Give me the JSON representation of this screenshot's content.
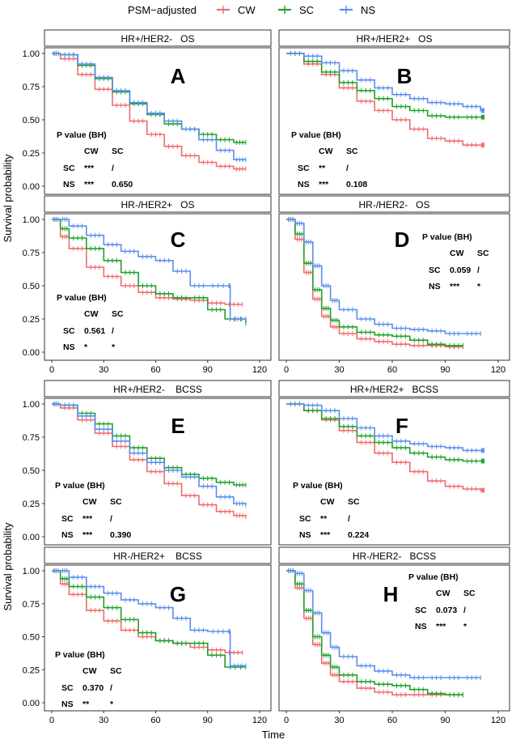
{
  "legend": {
    "title": "PSM−adjusted",
    "entries": [
      {
        "name": "CW",
        "color": "#F26B6B"
      },
      {
        "name": "SC",
        "color": "#1FA12A"
      },
      {
        "name": "NS",
        "color": "#5B8DEF"
      }
    ]
  },
  "axes": {
    "ylabel": "Survival probability",
    "xlabel": "Time",
    "xticks": [
      0,
      30,
      60,
      90,
      120
    ],
    "yticks": [
      "0.00",
      "0.25",
      "0.50",
      "0.75",
      "1.00"
    ]
  },
  "pval_header": "P value (BH)",
  "chart_data": [
    {
      "type": "line",
      "panel": "A",
      "title": "HR+/HER2-   OS",
      "xlim": [
        0,
        120
      ],
      "ylim": [
        0,
        1
      ],
      "series": [
        {
          "name": "CW",
          "x": [
            0,
            5,
            15,
            25,
            35,
            45,
            55,
            65,
            75,
            85,
            95,
            105,
            112
          ],
          "y": [
            1,
            0.96,
            0.84,
            0.73,
            0.61,
            0.49,
            0.39,
            0.3,
            0.23,
            0.18,
            0.15,
            0.13,
            0.13
          ]
        },
        {
          "name": "SC",
          "x": [
            0,
            5,
            15,
            25,
            35,
            45,
            55,
            65,
            75,
            85,
            95,
            105,
            112
          ],
          "y": [
            1,
            0.99,
            0.91,
            0.81,
            0.71,
            0.62,
            0.54,
            0.47,
            0.43,
            0.39,
            0.35,
            0.33,
            0.33
          ]
        },
        {
          "name": "NS",
          "x": [
            0,
            5,
            15,
            25,
            35,
            45,
            55,
            65,
            75,
            85,
            95,
            105,
            112
          ],
          "y": [
            1,
            0.99,
            0.92,
            0.82,
            0.72,
            0.63,
            0.55,
            0.49,
            0.43,
            0.35,
            0.27,
            0.2,
            0.2
          ]
        }
      ],
      "pvals": {
        "header": [
          "CW",
          "SC"
        ],
        "rows": [
          {
            "label": "SC",
            "values": [
              "***",
              "/"
            ]
          },
          {
            "label": "NS",
            "values": [
              "***",
              "0.650"
            ]
          }
        ]
      }
    },
    {
      "type": "line",
      "panel": "B",
      "title": "HR+/HER2+   OS",
      "xlim": [
        0,
        120
      ],
      "ylim": [
        0,
        1
      ],
      "series": [
        {
          "name": "CW",
          "x": [
            0,
            10,
            20,
            30,
            40,
            50,
            60,
            70,
            80,
            90,
            100,
            110,
            112
          ],
          "y": [
            1,
            0.92,
            0.84,
            0.74,
            0.64,
            0.57,
            0.5,
            0.43,
            0.36,
            0.34,
            0.31,
            0.31,
            0.31
          ]
        },
        {
          "name": "SC",
          "x": [
            0,
            10,
            20,
            30,
            40,
            50,
            60,
            70,
            80,
            90,
            100,
            110,
            112
          ],
          "y": [
            1,
            0.94,
            0.86,
            0.78,
            0.72,
            0.66,
            0.6,
            0.57,
            0.53,
            0.52,
            0.52,
            0.52,
            0.52
          ]
        },
        {
          "name": "NS",
          "x": [
            0,
            10,
            20,
            30,
            40,
            50,
            60,
            70,
            80,
            90,
            100,
            110,
            112
          ],
          "y": [
            1,
            0.98,
            0.93,
            0.87,
            0.8,
            0.74,
            0.69,
            0.66,
            0.63,
            0.62,
            0.6,
            0.57,
            0.57
          ]
        }
      ],
      "pvals": {
        "header": [
          "CW",
          "SC"
        ],
        "rows": [
          {
            "label": "SC",
            "values": [
              "**",
              "/"
            ]
          },
          {
            "label": "NS",
            "values": [
              "***",
              "0.108"
            ]
          }
        ]
      }
    },
    {
      "type": "line",
      "panel": "C",
      "title": "HR-/HER2+   OS",
      "xlim": [
        0,
        120
      ],
      "ylim": [
        0,
        1
      ],
      "series": [
        {
          "name": "CW",
          "x": [
            0,
            5,
            10,
            20,
            30,
            40,
            50,
            60,
            70,
            80,
            90,
            100,
            110
          ],
          "y": [
            1,
            0.87,
            0.78,
            0.64,
            0.57,
            0.5,
            0.45,
            0.41,
            0.4,
            0.39,
            0.37,
            0.36,
            0.36
          ]
        },
        {
          "name": "SC",
          "x": [
            0,
            5,
            10,
            20,
            30,
            40,
            50,
            60,
            70,
            80,
            90,
            100,
            112
          ],
          "y": [
            1,
            0.93,
            0.86,
            0.78,
            0.69,
            0.6,
            0.5,
            0.44,
            0.41,
            0.41,
            0.32,
            0.25,
            0.22
          ]
        },
        {
          "name": "NS",
          "x": [
            0,
            5,
            10,
            20,
            30,
            40,
            50,
            60,
            70,
            80,
            90,
            102,
            103,
            112
          ],
          "y": [
            1,
            1,
            0.95,
            0.88,
            0.81,
            0.76,
            0.72,
            0.69,
            0.61,
            0.5,
            0.5,
            0.5,
            0.25,
            0.25
          ]
        }
      ],
      "pvals": {
        "header": [
          "CW",
          "SC"
        ],
        "rows": [
          {
            "label": "SC",
            "values": [
              "0.561",
              "/"
            ]
          },
          {
            "label": "NS",
            "values": [
              "*",
              "*"
            ]
          }
        ]
      }
    },
    {
      "type": "line",
      "panel": "D",
      "title": "HR-/HER2-   OS",
      "xlim": [
        0,
        120
      ],
      "ylim": [
        0,
        1
      ],
      "series": [
        {
          "name": "CW",
          "x": [
            0,
            5,
            10,
            15,
            20,
            25,
            30,
            40,
            50,
            60,
            70,
            80,
            90,
            100
          ],
          "y": [
            1,
            0.85,
            0.6,
            0.4,
            0.27,
            0.19,
            0.14,
            0.1,
            0.08,
            0.06,
            0.05,
            0.05,
            0.04,
            0.04
          ]
        },
        {
          "name": "SC",
          "x": [
            0,
            5,
            10,
            15,
            20,
            25,
            30,
            40,
            50,
            60,
            70,
            80,
            90,
            100
          ],
          "y": [
            1,
            0.89,
            0.67,
            0.47,
            0.33,
            0.24,
            0.19,
            0.15,
            0.13,
            0.12,
            0.09,
            0.06,
            0.05,
            0.05
          ]
        },
        {
          "name": "NS",
          "x": [
            0,
            5,
            10,
            15,
            20,
            25,
            30,
            40,
            50,
            60,
            70,
            80,
            90,
            100,
            110
          ],
          "y": [
            1,
            0.97,
            0.83,
            0.65,
            0.5,
            0.39,
            0.32,
            0.25,
            0.21,
            0.18,
            0.17,
            0.16,
            0.14,
            0.14,
            0.14
          ]
        }
      ],
      "pvals": {
        "header": [
          "CW",
          "SC"
        ],
        "rows": [
          {
            "label": "SC",
            "values": [
              "0.059",
              "/"
            ]
          },
          {
            "label": "NS",
            "values": [
              "***",
              "*"
            ]
          }
        ]
      }
    },
    {
      "type": "line",
      "panel": "E",
      "title": "HR+/HER2-    BCSS",
      "xlim": [
        0,
        120
      ],
      "ylim": [
        0,
        1
      ],
      "series": [
        {
          "name": "CW",
          "x": [
            0,
            5,
            15,
            25,
            35,
            45,
            55,
            65,
            75,
            85,
            95,
            105,
            112
          ],
          "y": [
            1,
            0.97,
            0.88,
            0.78,
            0.68,
            0.58,
            0.49,
            0.4,
            0.31,
            0.24,
            0.19,
            0.16,
            0.15
          ]
        },
        {
          "name": "SC",
          "x": [
            0,
            5,
            15,
            25,
            35,
            45,
            55,
            65,
            75,
            85,
            95,
            105,
            112
          ],
          "y": [
            1,
            0.99,
            0.93,
            0.85,
            0.76,
            0.67,
            0.59,
            0.52,
            0.47,
            0.44,
            0.41,
            0.39,
            0.39
          ]
        },
        {
          "name": "NS",
          "x": [
            0,
            5,
            15,
            25,
            35,
            45,
            55,
            65,
            75,
            85,
            95,
            105,
            112
          ],
          "y": [
            1,
            0.99,
            0.91,
            0.81,
            0.72,
            0.63,
            0.56,
            0.5,
            0.45,
            0.38,
            0.3,
            0.25,
            0.24
          ]
        }
      ],
      "pvals": {
        "header": [
          "CW",
          "SC"
        ],
        "rows": [
          {
            "label": "SC",
            "values": [
              "***",
              "/"
            ]
          },
          {
            "label": "NS",
            "values": [
              "***",
              "0.390"
            ]
          }
        ]
      }
    },
    {
      "type": "line",
      "panel": "F",
      "title": "HR+/HER2+   BCSS",
      "xlim": [
        0,
        120
      ],
      "ylim": [
        0,
        1
      ],
      "series": [
        {
          "name": "CW",
          "x": [
            0,
            10,
            20,
            30,
            40,
            50,
            60,
            70,
            80,
            90,
            100,
            110,
            112
          ],
          "y": [
            1,
            0.95,
            0.88,
            0.8,
            0.71,
            0.63,
            0.56,
            0.49,
            0.42,
            0.38,
            0.36,
            0.35,
            0.35
          ]
        },
        {
          "name": "SC",
          "x": [
            0,
            10,
            20,
            30,
            40,
            50,
            60,
            70,
            80,
            90,
            100,
            110,
            112
          ],
          "y": [
            1,
            0.95,
            0.89,
            0.83,
            0.76,
            0.71,
            0.67,
            0.63,
            0.6,
            0.58,
            0.57,
            0.57,
            0.57
          ]
        },
        {
          "name": "NS",
          "x": [
            0,
            10,
            20,
            30,
            40,
            50,
            60,
            70,
            80,
            90,
            100,
            110,
            112
          ],
          "y": [
            1,
            0.99,
            0.95,
            0.89,
            0.82,
            0.76,
            0.72,
            0.7,
            0.68,
            0.67,
            0.65,
            0.65,
            0.65
          ]
        }
      ],
      "pvals": {
        "header": [
          "CW",
          "SC"
        ],
        "rows": [
          {
            "label": "SC",
            "values": [
              "**",
              "/"
            ]
          },
          {
            "label": "NS",
            "values": [
              "***",
              "0.224"
            ]
          }
        ]
      }
    },
    {
      "type": "line",
      "panel": "G",
      "title": "HR-/HER2+    BCSS",
      "xlim": [
        0,
        120
      ],
      "ylim": [
        0,
        1
      ],
      "series": [
        {
          "name": "CW",
          "x": [
            0,
            5,
            10,
            20,
            30,
            40,
            50,
            60,
            70,
            80,
            90,
            100,
            110
          ],
          "y": [
            1,
            0.9,
            0.82,
            0.7,
            0.62,
            0.55,
            0.5,
            0.47,
            0.45,
            0.42,
            0.4,
            0.38,
            0.38
          ]
        },
        {
          "name": "SC",
          "x": [
            0,
            5,
            10,
            20,
            30,
            40,
            50,
            60,
            70,
            80,
            90,
            100,
            112
          ],
          "y": [
            1,
            0.94,
            0.88,
            0.8,
            0.72,
            0.63,
            0.53,
            0.47,
            0.45,
            0.45,
            0.36,
            0.27,
            0.27
          ]
        },
        {
          "name": "NS",
          "x": [
            0,
            5,
            10,
            20,
            30,
            40,
            50,
            60,
            70,
            80,
            90,
            102,
            103,
            112
          ],
          "y": [
            1,
            1,
            0.95,
            0.88,
            0.83,
            0.78,
            0.75,
            0.72,
            0.64,
            0.55,
            0.54,
            0.54,
            0.28,
            0.28
          ]
        }
      ],
      "pvals": {
        "header": [
          "CW",
          "SC"
        ],
        "rows": [
          {
            "label": "SC",
            "values": [
              "0.370",
              "/"
            ]
          },
          {
            "label": "NS",
            "values": [
              "**",
              "*"
            ]
          }
        ]
      }
    },
    {
      "type": "line",
      "panel": "H",
      "title": "HR-/HER2-   BCSS",
      "xlim": [
        0,
        120
      ],
      "ylim": [
        0,
        1
      ],
      "series": [
        {
          "name": "CW",
          "x": [
            0,
            5,
            10,
            15,
            20,
            25,
            30,
            40,
            50,
            60,
            70,
            80,
            90,
            100
          ],
          "y": [
            1,
            0.87,
            0.64,
            0.44,
            0.3,
            0.21,
            0.16,
            0.11,
            0.08,
            0.06,
            0.06,
            0.06,
            0.06,
            0.06
          ]
        },
        {
          "name": "SC",
          "x": [
            0,
            5,
            10,
            15,
            20,
            25,
            30,
            40,
            50,
            60,
            70,
            80,
            90,
            100
          ],
          "y": [
            1,
            0.9,
            0.7,
            0.5,
            0.36,
            0.27,
            0.21,
            0.16,
            0.14,
            0.13,
            0.1,
            0.07,
            0.06,
            0.06
          ]
        },
        {
          "name": "NS",
          "x": [
            0,
            5,
            10,
            15,
            20,
            25,
            30,
            40,
            50,
            60,
            70,
            80,
            90,
            100,
            110
          ],
          "y": [
            1,
            0.98,
            0.85,
            0.68,
            0.53,
            0.42,
            0.35,
            0.28,
            0.24,
            0.21,
            0.19,
            0.19,
            0.19,
            0.19,
            0.19
          ]
        }
      ],
      "pvals": {
        "header": [
          "CW",
          "SC"
        ],
        "rows": [
          {
            "label": "SC",
            "values": [
              "0.073",
              "/"
            ]
          },
          {
            "label": "NS",
            "values": [
              "***",
              "*"
            ]
          }
        ]
      }
    }
  ]
}
